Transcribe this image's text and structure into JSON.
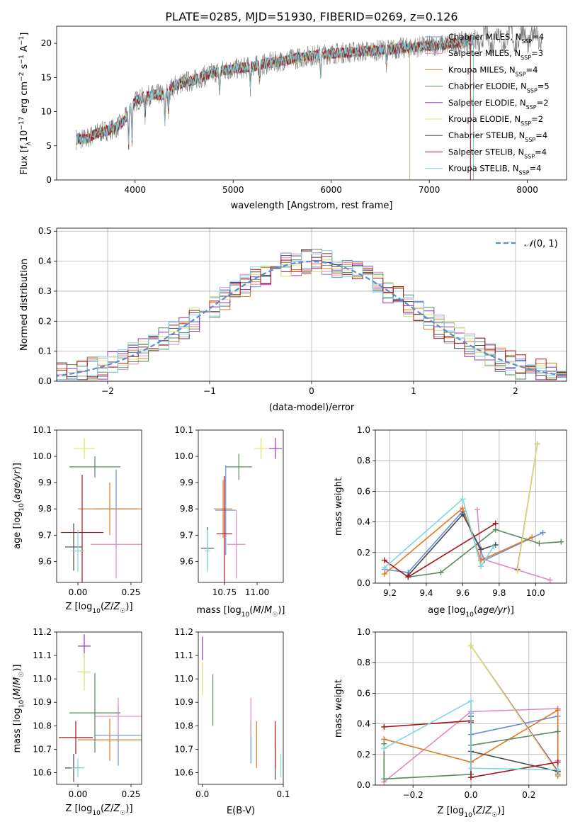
{
  "figure_title": "PLATE=0285, MJD=51930, FIBERID=0269, z=0.126",
  "colors": {
    "Chabrier MILES": "#6a8fd8",
    "Salpeter MILES": "#e38bc1",
    "Kroupa MILES": "#e07b22",
    "Chabrier ELODIE": "#5a8a5e",
    "Salpeter ELODIE": "#9a2fc2",
    "Kroupa ELODIE": "#d9e36a",
    "Chabrier STELIB": "#4a4a4a",
    "Salpeter STELIB": "#a8161a",
    "Kroupa STELIB": "#7fd8e0",
    "data": "#808080",
    "normal": "#5b8bd0"
  },
  "chart_data": [
    {
      "id": "spectrum",
      "type": "line",
      "xlabel": "wavelength [Angstrom, rest frame]",
      "ylabel": "Flux [f_λ10⁻¹⁷ erg cm⁻² s⁻¹ A⁻¹]",
      "xlim": [
        3200,
        8400
      ],
      "ylim": [
        0,
        22.5
      ],
      "xticks": [
        4000,
        5000,
        6000,
        7000,
        8000
      ],
      "yticks": [
        0,
        5,
        10,
        15,
        20
      ],
      "grid": false,
      "legend_position": "upper-right",
      "legend": [
        {
          "name": "Chabrier MILES, N",
          "sub": "SSP",
          "suffix": "=4"
        },
        {
          "name": "Salpeter MILES, N",
          "sub": "SSP",
          "suffix": "=3"
        },
        {
          "name": "Kroupa MILES, N",
          "sub": "SSP",
          "suffix": "=4"
        },
        {
          "name": "Chabrier ELODIE, N",
          "sub": "SSP",
          "suffix": "=5"
        },
        {
          "name": "Salpeter ELODIE, N",
          "sub": "SSP",
          "suffix": "=2"
        },
        {
          "name": "Kroupa ELODIE, N",
          "sub": "SSP",
          "suffix": "=2"
        },
        {
          "name": "Chabrier STELIB, N",
          "sub": "SSP",
          "suffix": "=4"
        },
        {
          "name": "Salpeter STELIB, N",
          "sub": "SSP",
          "suffix": "=4"
        },
        {
          "name": "Kroupa STELIB, N",
          "sub": "SSP",
          "suffix": "=4"
        }
      ],
      "continuum": [
        [
          3400,
          6.0
        ],
        [
          3500,
          6.0
        ],
        [
          3600,
          6.8
        ],
        [
          3700,
          7.2
        ],
        [
          3800,
          7.6
        ],
        [
          3880,
          8.5
        ],
        [
          3950,
          10.5
        ],
        [
          4000,
          11.5
        ],
        [
          4100,
          12.2
        ],
        [
          4200,
          12.5
        ],
        [
          4300,
          12.5
        ],
        [
          4400,
          13.8
        ],
        [
          4500,
          14.3
        ],
        [
          4600,
          14.6
        ],
        [
          4700,
          15.2
        ],
        [
          4800,
          15.7
        ],
        [
          4900,
          16.0
        ],
        [
          5000,
          16.2
        ],
        [
          5200,
          16.6
        ],
        [
          5400,
          17.2
        ],
        [
          5600,
          17.7
        ],
        [
          5800,
          18.2
        ],
        [
          6000,
          18.5
        ],
        [
          6200,
          18.7
        ],
        [
          6400,
          18.9
        ],
        [
          6600,
          19.1
        ],
        [
          6800,
          19.4
        ],
        [
          7000,
          19.6
        ],
        [
          7200,
          19.9
        ],
        [
          7400,
          20.3
        ],
        [
          7600,
          20.6
        ],
        [
          7800,
          20.8
        ],
        [
          8000,
          20.9
        ],
        [
          8150,
          21.1
        ]
      ]
    },
    {
      "id": "residuals",
      "type": "histogram",
      "xlabel": "(data-model)/error",
      "ylabel": "Normed distribution",
      "xlim": [
        -2.5,
        2.5
      ],
      "ylim": [
        0,
        0.51
      ],
      "xticks": [
        -2,
        -1,
        0,
        1,
        2
      ],
      "yticks": [
        0.0,
        0.1,
        0.2,
        0.3,
        0.4,
        0.5
      ],
      "grid": true,
      "legend_position": "upper-right",
      "legend_label": "N(0, 1)",
      "bin_width": 0.1
    },
    {
      "id": "age-vs-Z",
      "type": "scatter",
      "xlabel": "Z [log10(Z/Z☉)]",
      "ylabel": "age  [log10(age/yr)]",
      "xlim": [
        -0.1,
        0.3
      ],
      "ylim": [
        9.52,
        10.1
      ],
      "xticks": [
        0.0,
        0.25
      ],
      "yticks": [
        9.6,
        9.7,
        9.8,
        9.9,
        10.0,
        10.1
      ],
      "grid": false,
      "points": [
        {
          "model": "Chabrier MILES",
          "x": 0.18,
          "y": 9.8,
          "xerr": 0.1,
          "yerr": 0.15
        },
        {
          "model": "Salpeter MILES",
          "x": 0.18,
          "y": 9.665,
          "xerr": 0.12,
          "yerr": 0.13
        },
        {
          "model": "Kroupa MILES",
          "x": 0.15,
          "y": 9.8,
          "xerr": 0.15,
          "yerr": 0.1
        },
        {
          "model": "Chabrier ELODIE",
          "x": 0.08,
          "y": 9.96,
          "xerr": 0.12,
          "yerr": 0.04
        },
        {
          "model": "Kroupa ELODIE",
          "x": 0.03,
          "y": 10.03,
          "xerr": 0.05,
          "yerr": 0.04
        },
        {
          "model": "Chabrier STELIB",
          "x": -0.02,
          "y": 9.655,
          "xerr": 0.04,
          "yerr": 0.09
        },
        {
          "model": "Salpeter STELIB",
          "x": 0.02,
          "y": 9.71,
          "xerr": 0.1,
          "yerr": 0.22
        },
        {
          "model": "Kroupa STELIB",
          "x": 0.0,
          "y": 9.64,
          "xerr": 0.03,
          "yerr": 0.08
        }
      ]
    },
    {
      "id": "age-vs-mass",
      "type": "scatter",
      "xlabel": "mass [log10(M/M☉)]",
      "ylabel": "",
      "xlim": [
        10.55,
        11.2
      ],
      "ylim": [
        9.52,
        10.1
      ],
      "xticks": [
        10.75,
        11.0
      ],
      "yticks": [
        9.6,
        9.7,
        9.8,
        9.9,
        10.0,
        10.1
      ],
      "grid": false,
      "points": [
        {
          "model": "Chabrier MILES",
          "x": 10.76,
          "y": 9.795,
          "xerr": 0.08,
          "yerr": 0.17
        },
        {
          "model": "Salpeter MILES",
          "x": 10.84,
          "y": 9.665,
          "xerr": 0.07,
          "yerr": 0.13
        },
        {
          "model": "Kroupa MILES",
          "x": 10.74,
          "y": 9.8,
          "xerr": 0.07,
          "yerr": 0.11
        },
        {
          "model": "Chabrier ELODIE",
          "x": 10.86,
          "y": 9.96,
          "xerr": 0.1,
          "yerr": 0.05
        },
        {
          "model": "Salpeter ELODIE",
          "x": 11.14,
          "y": 10.03,
          "xerr": 0.05,
          "yerr": 0.04
        },
        {
          "model": "Kroupa ELODIE",
          "x": 11.03,
          "y": 10.03,
          "xerr": 0.05,
          "yerr": 0.04
        },
        {
          "model": "Chabrier STELIB",
          "x": 10.62,
          "y": 9.65,
          "xerr": 0.05,
          "yerr": 0.08
        },
        {
          "model": "Salpeter STELIB",
          "x": 10.75,
          "y": 9.705,
          "xerr": 0.06,
          "yerr": 0.22
        },
        {
          "model": "Kroupa STELIB",
          "x": 10.62,
          "y": 9.64,
          "xerr": 0.02,
          "yerr": 0.08
        }
      ]
    },
    {
      "id": "weight-vs-age",
      "type": "line",
      "xlabel": "age  [log10(age/yr)]",
      "ylabel": "mass weight",
      "xlim": [
        9.12,
        10.17
      ],
      "ylim": [
        0,
        1
      ],
      "xticks": [
        9.2,
        9.4,
        9.6,
        9.8,
        10.0
      ],
      "yticks": [
        0.0,
        0.2,
        0.4,
        0.6,
        0.8,
        1.0
      ],
      "grid": true,
      "series": [
        {
          "model": "Chabrier MILES",
          "x": [
            9.17,
            9.3,
            9.6,
            9.72,
            10.04
          ],
          "y": [
            0.09,
            0.07,
            0.47,
            0.15,
            0.33
          ]
        },
        {
          "model": "Salpeter MILES",
          "x": [
            9.68,
            9.7,
            10.08
          ],
          "y": [
            0.48,
            0.16,
            0.02
          ]
        },
        {
          "model": "Kroupa MILES",
          "x": [
            9.17,
            9.6,
            9.7,
            9.98
          ],
          "y": [
            0.06,
            0.49,
            0.15,
            0.3
          ]
        },
        {
          "model": "Chabrier ELODIE",
          "x": [
            9.3,
            9.48,
            9.78,
            10.02,
            10.14
          ],
          "y": [
            0.04,
            0.07,
            0.35,
            0.26,
            0.27
          ]
        },
        {
          "model": "Salpeter ELODIE",
          "x": [
            9.9,
            10.01
          ],
          "y": [
            0.09,
            0.91
          ]
        },
        {
          "model": "Kroupa ELODIE",
          "x": [
            9.9,
            10.01
          ],
          "y": [
            0.08,
            0.91
          ]
        },
        {
          "model": "Chabrier STELIB",
          "x": [
            9.3,
            9.6,
            9.7,
            9.78
          ],
          "y": [
            0.05,
            0.45,
            0.22,
            0.25
          ]
        },
        {
          "model": "Salpeter STELIB",
          "x": [
            9.17,
            9.3,
            9.78
          ],
          "y": [
            0.15,
            0.04,
            0.39
          ]
        },
        {
          "model": "Kroupa STELIB",
          "x": [
            9.17,
            9.6,
            9.7,
            9.77
          ],
          "y": [
            0.1,
            0.55,
            0.11,
            0.24
          ]
        }
      ]
    },
    {
      "id": "mass-vs-Z",
      "type": "scatter",
      "xlabel": "Z [log10(Z/Z☉)]",
      "ylabel": "mass [log10(M/M☉)]",
      "xlim": [
        -0.1,
        0.3
      ],
      "ylim": [
        10.55,
        11.2
      ],
      "xticks": [
        0.0,
        0.25
      ],
      "yticks": [
        10.6,
        10.7,
        10.8,
        10.9,
        11.0,
        11.1,
        11.2
      ],
      "grid": false,
      "points": [
        {
          "model": "Chabrier MILES",
          "x": 0.19,
          "y": 10.76,
          "xerr": 0.11,
          "yerr": 0.13
        },
        {
          "model": "Salpeter MILES",
          "x": 0.19,
          "y": 10.84,
          "xerr": 0.11,
          "yerr": 0.08
        },
        {
          "model": "Kroupa MILES",
          "x": 0.15,
          "y": 10.74,
          "xerr": 0.15,
          "yerr": 0.09
        },
        {
          "model": "Chabrier ELODIE",
          "x": 0.08,
          "y": 10.855,
          "xerr": 0.12,
          "yerr": 0.17
        },
        {
          "model": "Salpeter ELODIE",
          "x": 0.03,
          "y": 11.14,
          "xerr": 0.03,
          "yerr": 0.05
        },
        {
          "model": "Kroupa ELODIE",
          "x": 0.03,
          "y": 11.03,
          "xerr": 0.03,
          "yerr": 0.08
        },
        {
          "model": "Chabrier STELIB",
          "x": -0.02,
          "y": 10.62,
          "xerr": 0.04,
          "yerr": 0.06
        },
        {
          "model": "Salpeter STELIB",
          "x": -0.01,
          "y": 10.75,
          "xerr": 0.08,
          "yerr": 0.07
        },
        {
          "model": "Kroupa STELIB",
          "x": 0.0,
          "y": 10.62,
          "xerr": 0.03,
          "yerr": 0.04
        }
      ]
    },
    {
      "id": "mass-vs-EBV",
      "type": "scatter",
      "xlabel": "E(B-V)",
      "ylabel": "",
      "xlim": [
        -0.005,
        0.1
      ],
      "ylim": [
        10.55,
        11.2
      ],
      "xticks": [
        0,
        0.1
      ],
      "yticks": [
        10.6,
        10.7,
        10.8,
        10.9,
        11.0,
        11.1,
        11.2
      ],
      "grid": false,
      "points": [
        {
          "model": "Chabrier MILES",
          "x": 0.06,
          "y": 10.73,
          "xerr": 0,
          "yerr": 0.09
        },
        {
          "model": "Salpeter MILES",
          "x": 0.06,
          "y": 10.84,
          "xerr": 0,
          "yerr": 0.08
        },
        {
          "model": "Kroupa MILES",
          "x": 0.067,
          "y": 10.72,
          "xerr": 0,
          "yerr": 0.1
        },
        {
          "model": "Chabrier ELODIE",
          "x": 0.013,
          "y": 10.91,
          "xerr": 0,
          "yerr": 0.11
        },
        {
          "model": "Salpeter ELODIE",
          "x": 0.0,
          "y": 11.13,
          "xerr": 0,
          "yerr": 0.05
        },
        {
          "model": "Kroupa ELODIE",
          "x": 0.0,
          "y": 11.0,
          "xerr": 0,
          "yerr": 0.07
        },
        {
          "model": "Chabrier STELIB",
          "x": 0.09,
          "y": 10.64,
          "xerr": 0,
          "yerr": 0.07
        },
        {
          "model": "Salpeter STELIB",
          "x": 0.09,
          "y": 10.72,
          "xerr": 0,
          "yerr": 0.1
        },
        {
          "model": "Kroupa STELIB",
          "x": 0.097,
          "y": 10.63,
          "xerr": 0,
          "yerr": 0.05
        }
      ]
    },
    {
      "id": "weight-vs-Z",
      "type": "line",
      "xlabel": "Z [log10(Z/Z☉)]",
      "ylabel": "mass weight",
      "xlim": [
        -0.33,
        0.33
      ],
      "ylim": [
        0,
        1
      ],
      "xticks": [
        -0.2,
        0.0,
        0.2
      ],
      "yticks": [
        0.0,
        0.2,
        0.4,
        0.6,
        0.8,
        1.0
      ],
      "grid": true,
      "series": [
        {
          "model": "Chabrier MILES",
          "x": [
            0.0,
            0.0,
            0.3,
            0.3
          ],
          "y": [
            0.47,
            0.33,
            0.45,
            0.07
          ]
        },
        {
          "model": "Salpeter MILES",
          "x": [
            -0.3,
            0.0,
            0.3,
            0.3
          ],
          "y": [
            0.02,
            0.48,
            0.5,
            0.16
          ]
        },
        {
          "model": "Kroupa MILES",
          "x": [
            -0.3,
            0.0,
            0.3,
            0.3
          ],
          "y": [
            0.3,
            0.15,
            0.49,
            0.06
          ]
        },
        {
          "model": "Chabrier ELODIE",
          "x": [
            -0.3,
            -0.3,
            0.0,
            0.0,
            0.3
          ],
          "y": [
            0.27,
            0.04,
            0.07,
            0.26,
            0.35
          ]
        },
        {
          "model": "Salpeter ELODIE",
          "x": [
            0.0,
            0.3
          ],
          "y": [
            0.91,
            0.09
          ]
        },
        {
          "model": "Kroupa ELODIE",
          "x": [
            0.0,
            0.3
          ],
          "y": [
            0.91,
            0.08
          ]
        },
        {
          "model": "Chabrier STELIB",
          "x": [
            0.0,
            0.0,
            0.0,
            0.3
          ],
          "y": [
            0.45,
            0.41,
            0.22,
            0.09
          ]
        },
        {
          "model": "Salpeter STELIB",
          "x": [
            -0.3,
            0.0,
            0.0,
            0.3
          ],
          "y": [
            0.38,
            0.42,
            0.05,
            0.15
          ]
        },
        {
          "model": "Kroupa STELIB",
          "x": [
            -0.3,
            0.0,
            0.0,
            0.3
          ],
          "y": [
            0.24,
            0.55,
            0.11,
            0.1
          ]
        }
      ]
    }
  ]
}
